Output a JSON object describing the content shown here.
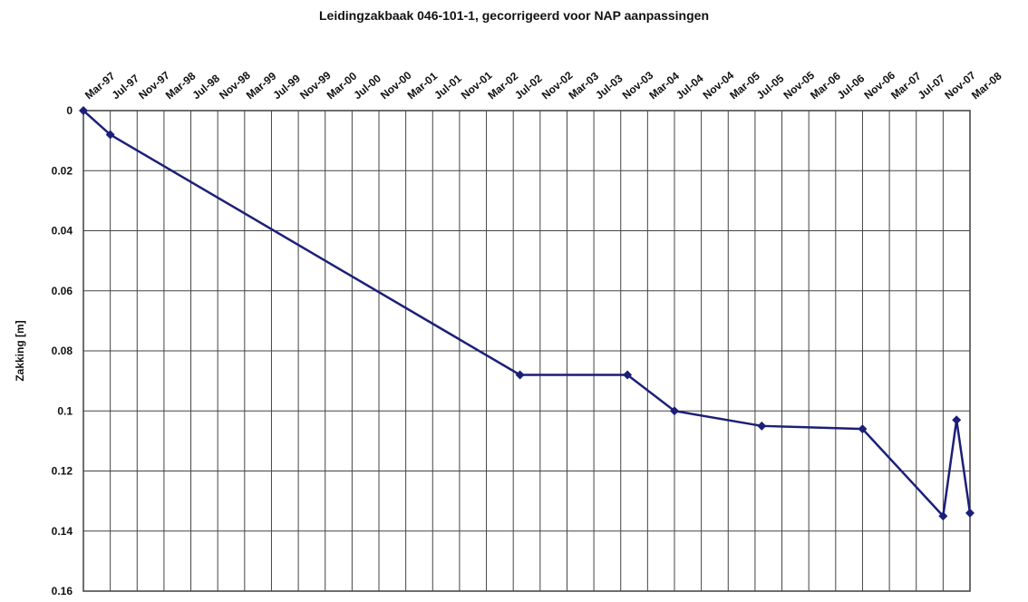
{
  "chart_data": {
    "type": "line",
    "title": "Leidingzakbaak 046-101-1, gecorrigeerd voor NAP aanpassingen",
    "y_label": "Zakking [m]",
    "x": [
      "Mar-97",
      "Jul-97",
      "Aug-02",
      "Dec-03",
      "Jul-04",
      "Aug-05",
      "Nov-06",
      "Nov-07",
      "Jan-08",
      "Mar-08"
    ],
    "series": [
      {
        "name": "Zakking",
        "color": "#1c1f78",
        "values": [
          0,
          0.008,
          0.088,
          0.088,
          0.1,
          0.105,
          0.106,
          0.135,
          0.103,
          0.134
        ]
      }
    ],
    "xlim": [
      "Mar-97",
      "Mar-08"
    ],
    "xticks": [
      "Mar-97",
      "Jul-97",
      "Nov-97",
      "Mar-98",
      "Jul-98",
      "Nov-98",
      "Mar-99",
      "Jul-99",
      "Nov-99",
      "Mar-00",
      "Jul-00",
      "Nov-00",
      "Mar-01",
      "Jul-01",
      "Nov-01",
      "Mar-02",
      "Jul-02",
      "Nov-02",
      "Mar-03",
      "Jul-03",
      "Nov-03",
      "Mar-04",
      "Jul-04",
      "Nov-04",
      "Mar-05",
      "Jul-05",
      "Nov-05",
      "Mar-06",
      "Jul-06",
      "Nov-06",
      "Mar-07",
      "Jul-07",
      "Nov-07",
      "Mar-08"
    ],
    "ylim": [
      0,
      0.16
    ],
    "yticks": [
      0,
      0.02,
      0.04,
      0.06,
      0.08,
      0.1,
      0.12,
      0.14,
      0.16
    ],
    "y_inverted": true,
    "grid": true
  }
}
